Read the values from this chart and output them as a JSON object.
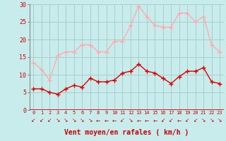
{
  "hours": [
    0,
    1,
    2,
    3,
    4,
    5,
    6,
    7,
    8,
    9,
    10,
    11,
    12,
    13,
    14,
    15,
    16,
    17,
    18,
    19,
    20,
    21,
    22,
    23
  ],
  "wind_avg": [
    6,
    6,
    5,
    4.5,
    6,
    7,
    6.5,
    9,
    8,
    8,
    8.5,
    10.5,
    11,
    13,
    11,
    10.5,
    9,
    7.5,
    9.5,
    11,
    11,
    12,
    8,
    7.5
  ],
  "wind_gust": [
    13.5,
    11.5,
    8.5,
    15.5,
    16.5,
    16.5,
    18.5,
    18.5,
    16.5,
    16.5,
    19.5,
    19.5,
    24,
    29.5,
    26.5,
    24,
    23.5,
    23.5,
    27.5,
    27.5,
    25,
    26.5,
    18.5,
    16.5
  ],
  "avg_color": "#dd0000",
  "gust_color": "#ffaaaa",
  "bg_color": "#c8ecec",
  "grid_color": "#aacccc",
  "xlabel": "Vent moyen/en rafales ( km/h )",
  "xlabel_color": "#cc0000",
  "tick_color": "#cc0000",
  "ylim": [
    0,
    30
  ],
  "yticks": [
    0,
    5,
    10,
    15,
    20,
    25,
    30
  ],
  "arrow_chars": [
    "↙",
    "↙",
    "↙",
    "↘",
    "↘",
    "↘",
    "↘",
    "↘",
    "←",
    "←",
    "←",
    "↙",
    "↘",
    "←",
    "←",
    "←",
    "↙",
    "↙",
    "←",
    "↙",
    "↙",
    "↘",
    "↘",
    "↘"
  ]
}
